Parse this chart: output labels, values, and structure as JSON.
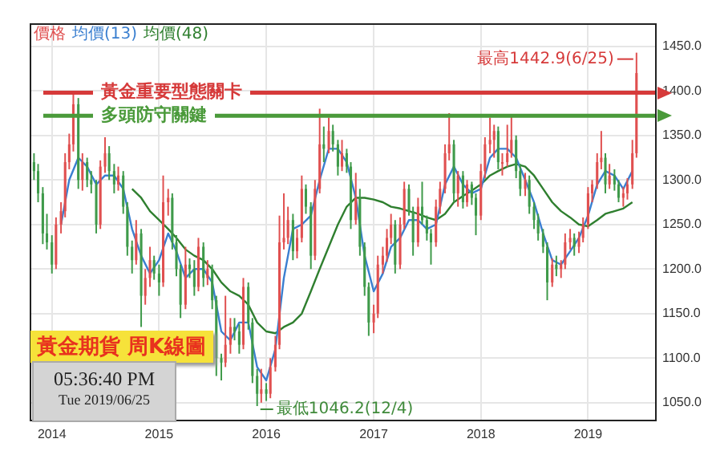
{
  "chart_data": {
    "type": "candlestick",
    "title": "黃金期貨 周K線圖",
    "annotations": [
      "05:36:40 PM",
      "Tue 2019/06/25",
      {
        "text": "最高1442.9(6/25)",
        "x": "2019-06-15",
        "y": 1442.9
      },
      {
        "text": "最低1046.2(12/4)",
        "x": "2015-12-01",
        "y": 1046.2
      }
    ],
    "xlim": [
      "2013-10-20",
      "2019-08-20"
    ],
    "xticks": [
      {
        "value": "2014-01-01",
        "label": "2014"
      },
      {
        "value": "2015-01-01",
        "label": "2015"
      },
      {
        "value": "2016-01-01",
        "label": "2016"
      },
      {
        "value": "2017-01-01",
        "label": "2017"
      },
      {
        "value": "2018-01-01",
        "label": "2018"
      },
      {
        "value": "2019-01-01",
        "label": "2019"
      }
    ],
    "ylim": [
      1030,
      1475
    ],
    "yticks": [
      {
        "value": 1050,
        "label": "1050.0"
      },
      {
        "value": 1100,
        "label": "1100.0"
      },
      {
        "value": 1150,
        "label": "1150.0"
      },
      {
        "value": 1200,
        "label": "1200.0"
      },
      {
        "value": 1250,
        "label": "1250.0"
      },
      {
        "value": 1300,
        "label": "1300.0"
      },
      {
        "value": 1350,
        "label": "1350.0"
      },
      {
        "value": 1400,
        "label": "1400.0"
      },
      {
        "value": 1450,
        "label": "1450.0"
      }
    ],
    "grid": true,
    "legend": "top left",
    "ref_lines": [
      {
        "axis": "y",
        "value": 1398,
        "label": "黃金重要型態關卡",
        "color": "#d63a3a"
      },
      {
        "axis": "y",
        "value": 1372,
        "label": "多頭防守關鍵",
        "color": "#4a9a3a"
      }
    ],
    "series": [
      {
        "name": "價格",
        "colors": [
          "#3f9a4a",
          "#3f9a4a",
          "#3f9a4a",
          "#3f9a4a",
          "#3f9a4a",
          "#e05050",
          "#e05050",
          "#e05050",
          "#e05050",
          "#e05050",
          "#3f9a4a",
          "#e05050",
          "#3f9a4a",
          "#3f9a4a",
          "#3f9a4a",
          "#e05050",
          "#e05050",
          "#3f9a4a",
          "#3f9a4a",
          "#e05050",
          "#3f9a4a",
          "#3f9a4a",
          "#3f9a4a",
          "#e05050",
          "#3f9a4a",
          "#e05050",
          "#e05050",
          "#3f9a4a",
          "#3f9a4a",
          "#e05050",
          "#e05050",
          "#3f9a4a",
          "#3f9a4a",
          "#3f9a4a",
          "#e05050",
          "#3f9a4a",
          "#3f9a4a",
          "#e05050",
          "#3f9a4a",
          "#e05050",
          "#3f9a4a",
          "#3f9a4a",
          "#3f9a4a",
          "#e05050",
          "#e05050",
          "#3f9a4a",
          "#3f9a4a",
          "#e05050",
          "#3f9a4a",
          "#3f9a4a",
          "#3f9a4a",
          "#e05050",
          "#3f9a4a",
          "#e05050",
          "#e05050",
          "#e05050",
          "#e05050",
          "#e05050",
          "#3f9a4a",
          "#e05050",
          "#e05050",
          "#3f9a4a",
          "#3f9a4a",
          "#e05050",
          "#e05050",
          "#3f9a4a",
          "#e05050",
          "#3f9a4a",
          "#3f9a4a",
          "#e05050",
          "#3f9a4a",
          "#3f9a4a",
          "#e05050",
          "#3f9a4a",
          "#3f9a4a",
          "#3f9a4a",
          "#e05050",
          "#e05050",
          "#e05050",
          "#e05050",
          "#e05050",
          "#3f9a4a",
          "#e05050",
          "#e05050",
          "#3f9a4a",
          "#3f9a4a",
          "#e05050",
          "#3f9a4a",
          "#3f9a4a",
          "#3f9a4a",
          "#e05050",
          "#e05050",
          "#e05050",
          "#e05050",
          "#3f9a4a",
          "#e05050",
          "#3f9a4a",
          "#e05050",
          "#3f9a4a",
          "#3f9a4a",
          "#e05050",
          "#e05050",
          "#e05050",
          "#e05050",
          "#3f9a4a",
          "#e05050",
          "#e05050",
          "#e05050",
          "#3f9a4a",
          "#3f9a4a",
          "#e05050",
          "#3f9a4a",
          "#3f9a4a",
          "#3f9a4a",
          "#3f9a4a",
          "#3f9a4a",
          "#e05050",
          "#3f9a4a",
          "#e05050",
          "#e05050",
          "#e05050",
          "#3f9a4a",
          "#e05050",
          "#e05050",
          "#e05050",
          "#e05050",
          "#e05050",
          "#e05050",
          "#3f9a4a",
          "#e05050",
          "#3f9a4a",
          "#3f9a4a",
          "#e05050",
          "#e05050",
          "#e05050",
          "#e05050"
        ],
        "x": [
          "2013-11-01",
          "2013-11-15",
          "2013-12-01",
          "2013-12-15",
          "2014-01-01",
          "2014-01-15",
          "2014-02-01",
          "2014-02-15",
          "2014-03-01",
          "2014-03-15",
          "2014-04-01",
          "2014-04-15",
          "2014-05-01",
          "2014-05-15",
          "2014-06-01",
          "2014-06-15",
          "2014-07-01",
          "2014-07-15",
          "2014-08-01",
          "2014-08-15",
          "2014-09-01",
          "2014-09-15",
          "2014-10-01",
          "2014-10-15",
          "2014-11-01",
          "2014-11-15",
          "2014-12-01",
          "2014-12-15",
          "2015-01-01",
          "2015-01-15",
          "2015-02-01",
          "2015-02-15",
          "2015-03-01",
          "2015-03-15",
          "2015-04-01",
          "2015-04-15",
          "2015-05-01",
          "2015-05-15",
          "2015-06-01",
          "2015-06-15",
          "2015-07-01",
          "2015-07-15",
          "2015-08-01",
          "2015-08-15",
          "2015-09-01",
          "2015-09-15",
          "2015-10-01",
          "2015-10-15",
          "2015-11-01",
          "2015-11-15",
          "2015-12-01",
          "2015-12-15",
          "2016-01-01",
          "2016-01-15",
          "2016-02-01",
          "2016-02-15",
          "2016-03-01",
          "2016-03-15",
          "2016-04-01",
          "2016-04-15",
          "2016-05-01",
          "2016-05-15",
          "2016-06-01",
          "2016-06-15",
          "2016-07-01",
          "2016-07-15",
          "2016-08-01",
          "2016-08-15",
          "2016-09-01",
          "2016-09-15",
          "2016-10-01",
          "2016-10-15",
          "2016-11-01",
          "2016-11-15",
          "2016-12-01",
          "2016-12-15",
          "2017-01-01",
          "2017-01-15",
          "2017-02-01",
          "2017-02-15",
          "2017-03-01",
          "2017-03-15",
          "2017-04-01",
          "2017-04-15",
          "2017-05-01",
          "2017-05-15",
          "2017-06-01",
          "2017-06-15",
          "2017-07-01",
          "2017-07-15",
          "2017-08-01",
          "2017-08-15",
          "2017-09-01",
          "2017-09-15",
          "2017-10-01",
          "2017-10-15",
          "2017-11-01",
          "2017-11-15",
          "2017-12-01",
          "2017-12-15",
          "2018-01-01",
          "2018-01-15",
          "2018-02-01",
          "2018-02-15",
          "2018-03-01",
          "2018-03-15",
          "2018-04-01",
          "2018-04-15",
          "2018-05-01",
          "2018-05-15",
          "2018-06-01",
          "2018-06-15",
          "2018-07-01",
          "2018-07-15",
          "2018-08-01",
          "2018-08-15",
          "2018-09-01",
          "2018-09-15",
          "2018-10-01",
          "2018-10-15",
          "2018-11-01",
          "2018-11-15",
          "2018-12-01",
          "2018-12-15",
          "2019-01-01",
          "2019-01-15",
          "2019-02-01",
          "2019-02-15",
          "2019-03-01",
          "2019-03-15",
          "2019-04-01",
          "2019-04-15",
          "2019-05-01",
          "2019-05-15",
          "2019-06-01",
          "2019-06-15"
        ],
        "ohlc": [
          [
            1320,
            1330,
            1300,
            1310
          ],
          [
            1310,
            1318,
            1275,
            1285
          ],
          [
            1285,
            1292,
            1228,
            1240
          ],
          [
            1240,
            1262,
            1222,
            1230
          ],
          [
            1230,
            1238,
            1195,
            1205
          ],
          [
            1205,
            1258,
            1200,
            1250
          ],
          [
            1250,
            1275,
            1240,
            1265
          ],
          [
            1265,
            1330,
            1258,
            1320
          ],
          [
            1320,
            1352,
            1312,
            1340
          ],
          [
            1340,
            1400,
            1332,
            1385
          ],
          [
            1385,
            1392,
            1290,
            1300
          ],
          [
            1300,
            1330,
            1288,
            1320
          ],
          [
            1320,
            1325,
            1292,
            1300
          ],
          [
            1300,
            1310,
            1285,
            1295
          ],
          [
            1295,
            1300,
            1240,
            1250
          ],
          [
            1250,
            1322,
            1245,
            1315
          ],
          [
            1315,
            1348,
            1308,
            1330
          ],
          [
            1330,
            1338,
            1300,
            1310
          ],
          [
            1310,
            1318,
            1285,
            1295
          ],
          [
            1295,
            1315,
            1288,
            1305
          ],
          [
            1305,
            1310,
            1262,
            1270
          ],
          [
            1270,
            1275,
            1215,
            1225
          ],
          [
            1225,
            1232,
            1195,
            1210
          ],
          [
            1210,
            1255,
            1205,
            1240
          ],
          [
            1240,
            1245,
            1135,
            1170
          ],
          [
            1170,
            1200,
            1160,
            1190
          ],
          [
            1190,
            1225,
            1180,
            1210
          ],
          [
            1210,
            1215,
            1188,
            1195
          ],
          [
            1195,
            1205,
            1170,
            1185
          ],
          [
            1185,
            1305,
            1180,
            1275
          ],
          [
            1275,
            1290,
            1260,
            1280
          ],
          [
            1280,
            1285,
            1222,
            1230
          ],
          [
            1230,
            1238,
            1192,
            1200
          ],
          [
            1200,
            1205,
            1145,
            1160
          ],
          [
            1160,
            1225,
            1155,
            1205
          ],
          [
            1205,
            1212,
            1190,
            1200
          ],
          [
            1200,
            1210,
            1170,
            1180
          ],
          [
            1180,
            1235,
            1175,
            1225
          ],
          [
            1225,
            1230,
            1180,
            1190
          ],
          [
            1190,
            1210,
            1182,
            1200
          ],
          [
            1200,
            1205,
            1155,
            1165
          ],
          [
            1165,
            1170,
            1080,
            1100
          ],
          [
            1100,
            1105,
            1075,
            1095
          ],
          [
            1095,
            1170,
            1090,
            1115
          ],
          [
            1115,
            1145,
            1105,
            1135
          ],
          [
            1135,
            1145,
            1120,
            1130
          ],
          [
            1130,
            1138,
            1105,
            1115
          ],
          [
            1115,
            1190,
            1110,
            1180
          ],
          [
            1180,
            1185,
            1132,
            1140
          ],
          [
            1140,
            1145,
            1072,
            1080
          ],
          [
            1080,
            1088,
            1046.2,
            1060
          ],
          [
            1060,
            1088,
            1050,
            1065
          ],
          [
            1065,
            1072,
            1052,
            1060
          ],
          [
            1060,
            1100,
            1055,
            1090
          ],
          [
            1090,
            1125,
            1085,
            1115
          ],
          [
            1115,
            1260,
            1110,
            1230
          ],
          [
            1230,
            1285,
            1222,
            1235
          ],
          [
            1235,
            1270,
            1228,
            1255
          ],
          [
            1255,
            1262,
            1210,
            1220
          ],
          [
            1220,
            1245,
            1212,
            1235
          ],
          [
            1235,
            1305,
            1230,
            1290
          ],
          [
            1290,
            1295,
            1262,
            1270
          ],
          [
            1270,
            1275,
            1200,
            1215
          ],
          [
            1215,
            1300,
            1210,
            1290
          ],
          [
            1290,
            1380,
            1285,
            1340
          ],
          [
            1340,
            1360,
            1320,
            1335
          ],
          [
            1335,
            1370,
            1330,
            1355
          ],
          [
            1355,
            1362,
            1332,
            1340
          ],
          [
            1340,
            1345,
            1305,
            1315
          ],
          [
            1315,
            1345,
            1310,
            1330
          ],
          [
            1330,
            1335,
            1308,
            1315
          ],
          [
            1315,
            1320,
            1245,
            1255
          ],
          [
            1255,
            1308,
            1250,
            1280
          ],
          [
            1280,
            1290,
            1215,
            1225
          ],
          [
            1225,
            1230,
            1170,
            1180
          ],
          [
            1180,
            1185,
            1125,
            1140
          ],
          [
            1140,
            1160,
            1128,
            1150
          ],
          [
            1150,
            1215,
            1145,
            1205
          ],
          [
            1205,
            1225,
            1195,
            1215
          ],
          [
            1215,
            1245,
            1208,
            1235
          ],
          [
            1235,
            1262,
            1228,
            1250
          ],
          [
            1250,
            1255,
            1195,
            1205
          ],
          [
            1205,
            1258,
            1200,
            1250
          ],
          [
            1250,
            1298,
            1245,
            1290
          ],
          [
            1290,
            1295,
            1260,
            1265
          ],
          [
            1265,
            1270,
            1215,
            1230
          ],
          [
            1230,
            1280,
            1225,
            1270
          ],
          [
            1270,
            1298,
            1250,
            1255
          ],
          [
            1255,
            1260,
            1232,
            1240
          ],
          [
            1240,
            1245,
            1205,
            1230
          ],
          [
            1230,
            1278,
            1225,
            1270
          ],
          [
            1270,
            1298,
            1262,
            1290
          ],
          [
            1290,
            1340,
            1285,
            1330
          ],
          [
            1330,
            1375,
            1322,
            1340
          ],
          [
            1340,
            1345,
            1275,
            1285
          ],
          [
            1285,
            1310,
            1270,
            1305
          ],
          [
            1305,
            1310,
            1268,
            1275
          ],
          [
            1275,
            1300,
            1270,
            1295
          ],
          [
            1295,
            1298,
            1272,
            1280
          ],
          [
            1280,
            1285,
            1238,
            1260
          ],
          [
            1260,
            1318,
            1255,
            1310
          ],
          [
            1310,
            1348,
            1302,
            1340
          ],
          [
            1340,
            1370,
            1330,
            1345
          ],
          [
            1345,
            1362,
            1325,
            1355
          ],
          [
            1355,
            1360,
            1312,
            1320
          ],
          [
            1320,
            1330,
            1305,
            1320
          ],
          [
            1320,
            1362,
            1315,
            1330
          ],
          [
            1330,
            1372,
            1325,
            1345
          ],
          [
            1345,
            1350,
            1302,
            1310
          ],
          [
            1310,
            1318,
            1282,
            1290
          ],
          [
            1290,
            1308,
            1282,
            1300
          ],
          [
            1300,
            1305,
            1262,
            1270
          ],
          [
            1270,
            1275,
            1245,
            1255
          ],
          [
            1255,
            1262,
            1232,
            1240
          ],
          [
            1240,
            1245,
            1218,
            1225
          ],
          [
            1225,
            1230,
            1165,
            1185
          ],
          [
            1185,
            1212,
            1180,
            1205
          ],
          [
            1205,
            1215,
            1192,
            1200
          ],
          [
            1200,
            1210,
            1190,
            1205
          ],
          [
            1205,
            1240,
            1200,
            1230
          ],
          [
            1230,
            1245,
            1222,
            1235
          ],
          [
            1235,
            1240,
            1215,
            1225
          ],
          [
            1225,
            1242,
            1218,
            1235
          ],
          [
            1235,
            1258,
            1230,
            1250
          ],
          [
            1250,
            1292,
            1245,
            1285
          ],
          [
            1285,
            1300,
            1275,
            1295
          ],
          [
            1295,
            1330,
            1290,
            1320
          ],
          [
            1320,
            1355,
            1312,
            1325
          ],
          [
            1325,
            1330,
            1285,
            1295
          ],
          [
            1295,
            1318,
            1290,
            1305
          ],
          [
            1305,
            1312,
            1288,
            1295
          ],
          [
            1295,
            1300,
            1275,
            1280
          ],
          [
            1280,
            1292,
            1270,
            1285
          ],
          [
            1285,
            1302,
            1278,
            1295
          ],
          [
            1295,
            1345,
            1290,
            1330
          ],
          [
            1330,
            1442.9,
            1325,
            1420
          ]
        ]
      },
      {
        "name": "均價(13)",
        "type": "line",
        "color": "#3a7fd0",
        "x": [
          "2014-02",
          "2014-03",
          "2014-04",
          "2014-05",
          "2014-06",
          "2014-07",
          "2014-08",
          "2014-09",
          "2014-10",
          "2014-11",
          "2014-12",
          "2015-01",
          "2015-02",
          "2015-03",
          "2015-04",
          "2015-05",
          "2015-06",
          "2015-07",
          "2015-08",
          "2015-09",
          "2015-10",
          "2015-11",
          "2015-12",
          "2016-01",
          "2016-02",
          "2016-03",
          "2016-04",
          "2016-05",
          "2016-06",
          "2016-07",
          "2016-08",
          "2016-09",
          "2016-10",
          "2016-11",
          "2016-12",
          "2017-01",
          "2017-02",
          "2017-03",
          "2017-04",
          "2017-05",
          "2017-06",
          "2017-07",
          "2017-08",
          "2017-09",
          "2017-10",
          "2017-11",
          "2017-12",
          "2018-01",
          "2018-02",
          "2018-03",
          "2018-04",
          "2018-05",
          "2018-06",
          "2018-07",
          "2018-08",
          "2018-09",
          "2018-10",
          "2018-11",
          "2018-12",
          "2019-01",
          "2019-02",
          "2019-03",
          "2019-04",
          "2019-05",
          "2019-06"
        ],
        "values": [
          1250,
          1300,
          1325,
          1315,
          1295,
          1305,
          1305,
          1290,
          1245,
          1215,
          1195,
          1210,
          1240,
          1220,
          1190,
          1200,
          1200,
          1185,
          1130,
          1120,
          1140,
          1140,
          1090,
          1075,
          1110,
          1190,
          1245,
          1250,
          1260,
          1300,
          1335,
          1335,
          1320,
          1280,
          1215,
          1175,
          1195,
          1225,
          1235,
          1255,
          1255,
          1245,
          1250,
          1295,
          1315,
          1295,
          1285,
          1290,
          1325,
          1335,
          1335,
          1325,
          1300,
          1275,
          1240,
          1210,
          1205,
          1220,
          1235,
          1260,
          1295,
          1310,
          1305,
          1290,
          1310
        ]
      },
      {
        "name": "均價(48)",
        "type": "line",
        "color": "#2f7f2f",
        "x": [
          "2014-10",
          "2014-11",
          "2014-12",
          "2015-01",
          "2015-02",
          "2015-03",
          "2015-04",
          "2015-05",
          "2015-06",
          "2015-07",
          "2015-08",
          "2015-09",
          "2015-10",
          "2015-11",
          "2015-12",
          "2016-01",
          "2016-02",
          "2016-03",
          "2016-04",
          "2016-05",
          "2016-06",
          "2016-07",
          "2016-08",
          "2016-09",
          "2016-10",
          "2016-11",
          "2016-12",
          "2017-01",
          "2017-02",
          "2017-03",
          "2017-04",
          "2017-05",
          "2017-06",
          "2017-07",
          "2017-08",
          "2017-09",
          "2017-10",
          "2017-11",
          "2017-12",
          "2018-01",
          "2018-02",
          "2018-03",
          "2018-04",
          "2018-05",
          "2018-06",
          "2018-07",
          "2018-08",
          "2018-09",
          "2018-10",
          "2018-11",
          "2018-12",
          "2019-01",
          "2019-02",
          "2019-03",
          "2019-04",
          "2019-05",
          "2019-06"
        ],
        "values": [
          1290,
          1280,
          1265,
          1255,
          1245,
          1235,
          1222,
          1215,
          1210,
          1200,
          1185,
          1175,
          1170,
          1160,
          1140,
          1130,
          1128,
          1135,
          1140,
          1150,
          1175,
          1200,
          1225,
          1250,
          1270,
          1280,
          1280,
          1278,
          1275,
          1270,
          1268,
          1265,
          1262,
          1258,
          1255,
          1262,
          1275,
          1282,
          1288,
          1295,
          1305,
          1310,
          1315,
          1318,
          1315,
          1305,
          1290,
          1275,
          1265,
          1258,
          1250,
          1248,
          1255,
          1262,
          1265,
          1268,
          1275
        ]
      }
    ]
  }
}
